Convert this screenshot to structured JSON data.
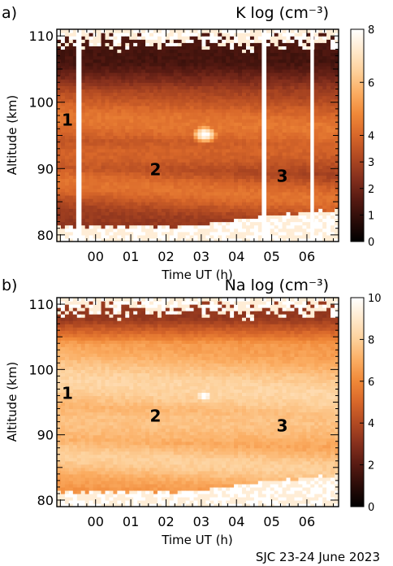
{
  "footer": "SJC 23-24 June 2023",
  "colors": {
    "ramp": [
      "#000000",
      "#2a0c08",
      "#571a12",
      "#86301d",
      "#b24a22",
      "#d8672a",
      "#f08838",
      "#fbad62",
      "#fdd09a",
      "#ffe9cc",
      "#ffffff"
    ]
  },
  "chart_data": [
    {
      "type": "heatmap",
      "panel_label": "a)",
      "title": "K log (cm⁻³)",
      "xlabel": "Time UT (h)",
      "ylabel": "Altitude (km)",
      "x_ticks": [
        "00",
        "01",
        "02",
        "03",
        "04",
        "05",
        "06"
      ],
      "x_tick_values": [
        0,
        1,
        2,
        3,
        4,
        5,
        6
      ],
      "xlim": [
        -1.1,
        6.9
      ],
      "y_ticks": [
        "80",
        "90",
        "100",
        "110"
      ],
      "ylim": [
        79,
        111
      ],
      "colorbar": {
        "ticks": [
          "0",
          "1",
          "2",
          "3",
          "4",
          "6",
          "8"
        ],
        "range": [
          0,
          8
        ],
        "scale": "log"
      },
      "annotations": [
        {
          "text": "1",
          "x": -0.8,
          "y": 96.5
        },
        {
          "text": "2",
          "x": 1.7,
          "y": 89
        },
        {
          "text": "3",
          "x": 5.3,
          "y": 88
        }
      ],
      "layers": [
        {
          "center": 97.0,
          "width": 4.0,
          "value": 4.4,
          "trend": -0.2
        },
        {
          "center": 92.5,
          "width": 3.5,
          "value": 3.9,
          "trend": 0.15
        },
        {
          "center": 87.0,
          "width": 3.0,
          "value": 4.3,
          "trend": -0.35
        }
      ],
      "base_value": 2.6,
      "top_value": 1.3,
      "top_altitude": 102,
      "patch": {
        "x": 3.1,
        "y": 95.2,
        "value": 8
      },
      "data_gaps": [
        [
          -0.55,
          -0.4
        ],
        [
          4.72,
          4.85
        ],
        [
          6.1,
          6.2
        ]
      ]
    },
    {
      "type": "heatmap",
      "panel_label": "b)",
      "title": "Na log (cm⁻³)",
      "xlabel": "Time UT (h)",
      "ylabel": "Altitude (km)",
      "x_ticks": [
        "00",
        "01",
        "02",
        "03",
        "04",
        "05",
        "06"
      ],
      "x_tick_values": [
        0,
        1,
        2,
        3,
        4,
        5,
        6
      ],
      "xlim": [
        -1.1,
        6.9
      ],
      "y_ticks": [
        "80",
        "90",
        "100",
        "110"
      ],
      "ylim": [
        79,
        111
      ],
      "colorbar": {
        "ticks": [
          "0",
          "2",
          "4",
          "6",
          "8",
          "10"
        ],
        "range": [
          0,
          10
        ],
        "scale": "log"
      },
      "annotations": [
        {
          "text": "1",
          "x": -0.8,
          "y": 95.5
        },
        {
          "text": "2",
          "x": 1.7,
          "y": 92
        },
        {
          "text": "3",
          "x": 5.3,
          "y": 90.5
        }
      ],
      "layers": [
        {
          "center": 97.5,
          "width": 4.5,
          "value": 8.2,
          "trend": -0.3
        },
        {
          "center": 92.0,
          "width": 4.0,
          "value": 7.6,
          "trend": 0.0
        },
        {
          "center": 86.0,
          "width": 3.0,
          "value": 8.0,
          "trend": -0.3
        }
      ],
      "base_value": 6.3,
      "top_value": 3.2,
      "top_altitude": 104,
      "patch": {
        "x": 3.1,
        "y": 96.0,
        "value": 10
      },
      "data_gaps": []
    }
  ]
}
